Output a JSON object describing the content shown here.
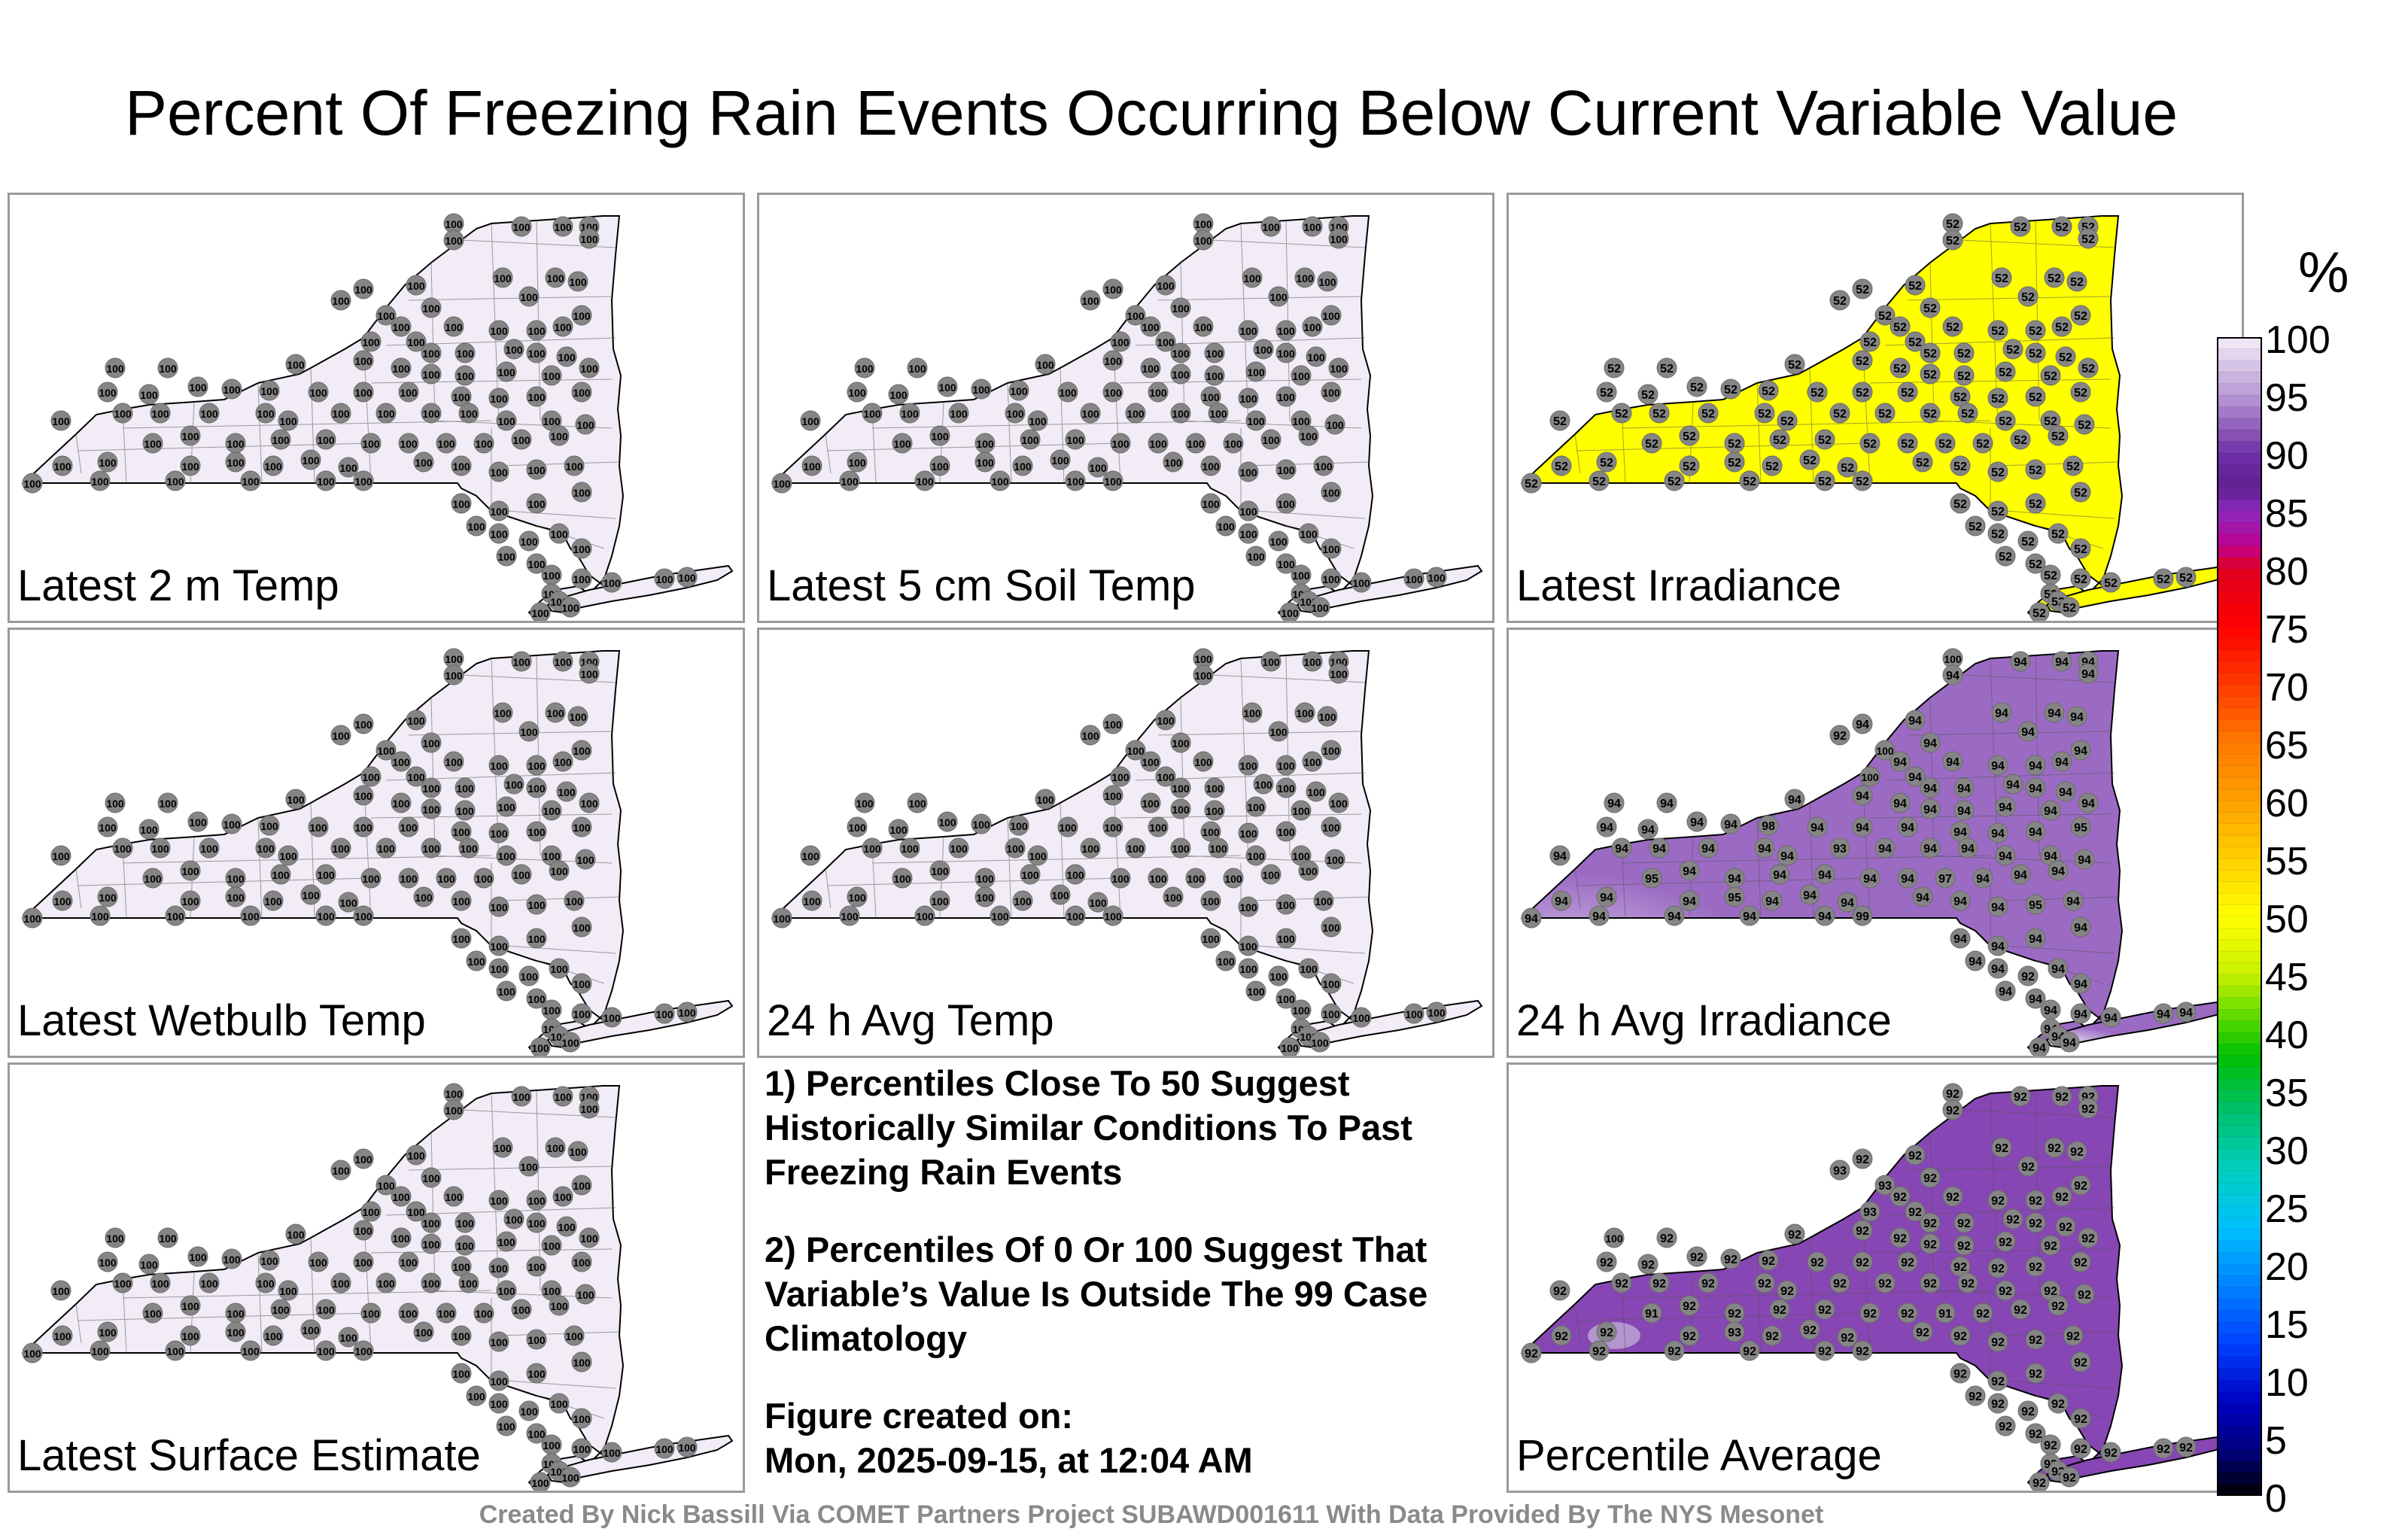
{
  "title": "Percent Of Freezing Rain Events Occurring Below Current Variable Value",
  "panels": [
    {
      "id": "temp2m",
      "label": "Latest 2 m Temp",
      "fill": "#f1ecf6",
      "value": "100",
      "shading": "flat"
    },
    {
      "id": "soil5cm",
      "label": "Latest 5 cm Soil Temp",
      "fill": "#f1ecf6",
      "value": "100",
      "shading": "flat"
    },
    {
      "id": "irr",
      "label": "Latest Irradiance",
      "fill": "#ffff00",
      "value": "52",
      "shading": "flat"
    },
    {
      "id": "wetbulb",
      "label": "Latest Wetbulb Temp",
      "fill": "#f1ecf6",
      "value": "100",
      "shading": "flat"
    },
    {
      "id": "avgtemp",
      "label": "24 h Avg Temp",
      "fill": "#f1ecf6",
      "value": "100",
      "shading": "flat"
    },
    {
      "id": "avgirr",
      "label": "24 h Avg Irradiance",
      "fill": "#9b6bc4",
      "value": "94",
      "shading": "mixed",
      "values": [
        "100",
        "100",
        "98",
        "95",
        "95",
        "94",
        "93",
        "92",
        "94",
        "95",
        "97",
        "99",
        "96",
        "91",
        "100",
        "94",
        "93",
        "95",
        "92",
        "94"
      ]
    },
    {
      "id": "surf",
      "label": "Latest Surface Estimate",
      "fill": "#f1ecf6",
      "value": "100",
      "shading": "flat"
    },
    {
      "id": "avg",
      "label": "Percentile Average",
      "fill": "#8646b3",
      "value": "92",
      "shading": "avg",
      "values": [
        "92",
        "93",
        "92",
        "91",
        "92",
        "93",
        "92",
        "93",
        "100",
        "92",
        "91",
        "92",
        "93",
        "92",
        "93",
        "92",
        "92",
        "93",
        "92",
        "92"
      ]
    }
  ],
  "notes": {
    "note1": "1) Percentiles Close To 50 Suggest Historically Similar Conditions To Past Freezing Rain Events",
    "note2": "2) Percentiles Of 0 Or 100 Suggest That Variable’s Value Is Outside The 99 Case Climatology",
    "created_label": "Figure created on:",
    "created_value": "Mon, 2025-09-15, at 12:04 AM"
  },
  "footer": "Created By Nick Bassill Via COMET Partners Project SUBAWD001611 With Data Provided By The NYS Mesonet",
  "colorbar": {
    "unit": "%",
    "ticks": [
      "100",
      "95",
      "90",
      "85",
      "80",
      "75",
      "70",
      "65",
      "60",
      "55",
      "50",
      "45",
      "40",
      "35",
      "30",
      "25",
      "20",
      "15",
      "10",
      "5",
      "0"
    ]
  }
}
